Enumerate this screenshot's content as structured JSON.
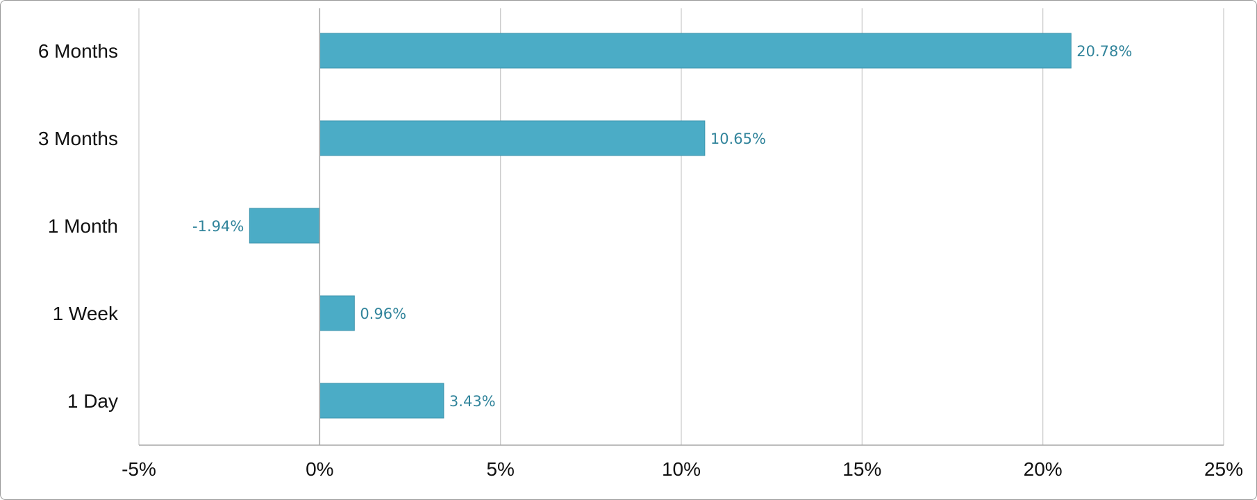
{
  "chart_data": {
    "type": "bar",
    "orientation": "horizontal",
    "categories": [
      "6 Months",
      "3 Months",
      "1 Month",
      "1 Week",
      "1 Day"
    ],
    "values": [
      20.78,
      10.65,
      -1.94,
      0.96,
      3.43
    ],
    "data_labels": [
      "20.78%",
      "10.65%",
      "-1.94%",
      "0.96%",
      "3.43%"
    ],
    "x_ticks": [
      -5,
      0,
      5,
      10,
      15,
      20,
      25
    ],
    "x_tick_labels": [
      "-5%",
      "0%",
      "5%",
      "10%",
      "15%",
      "20%",
      "25%"
    ],
    "xlim": [
      -5,
      25
    ],
    "grid": "vertical",
    "legend": "none",
    "title": "",
    "xlabel": "",
    "ylabel": "",
    "colors": {
      "bar": "#4bacc6",
      "bar_border": "#3f95ad",
      "data_label": "#31849b",
      "grid": "#c8c8c8",
      "axis": "#a6a6a6",
      "text": "#111111"
    }
  }
}
